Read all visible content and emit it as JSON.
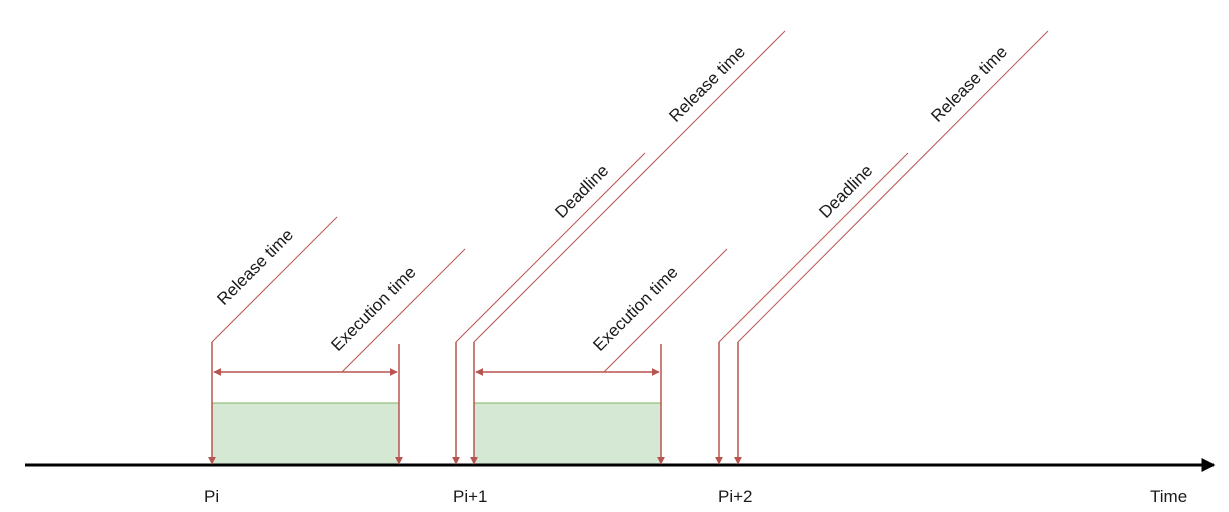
{
  "colors": {
    "axis": "#000000",
    "marker": "#b85450",
    "box_fill": "#d5e8d4",
    "box_stroke": "#82b366"
  },
  "axis": {
    "label": "Time"
  },
  "periods": [
    {
      "tick_label": "Pi"
    },
    {
      "tick_label": "Pi+1"
    },
    {
      "tick_label": "Pi+2"
    }
  ],
  "annotations": {
    "release_time_1": "Release time",
    "execution_time_1": "Execution time",
    "deadline_1": "Deadline",
    "release_time_2": "Release time",
    "execution_time_2": "Execution time",
    "deadline_2": "Deadline",
    "release_time_3": "Release time"
  }
}
